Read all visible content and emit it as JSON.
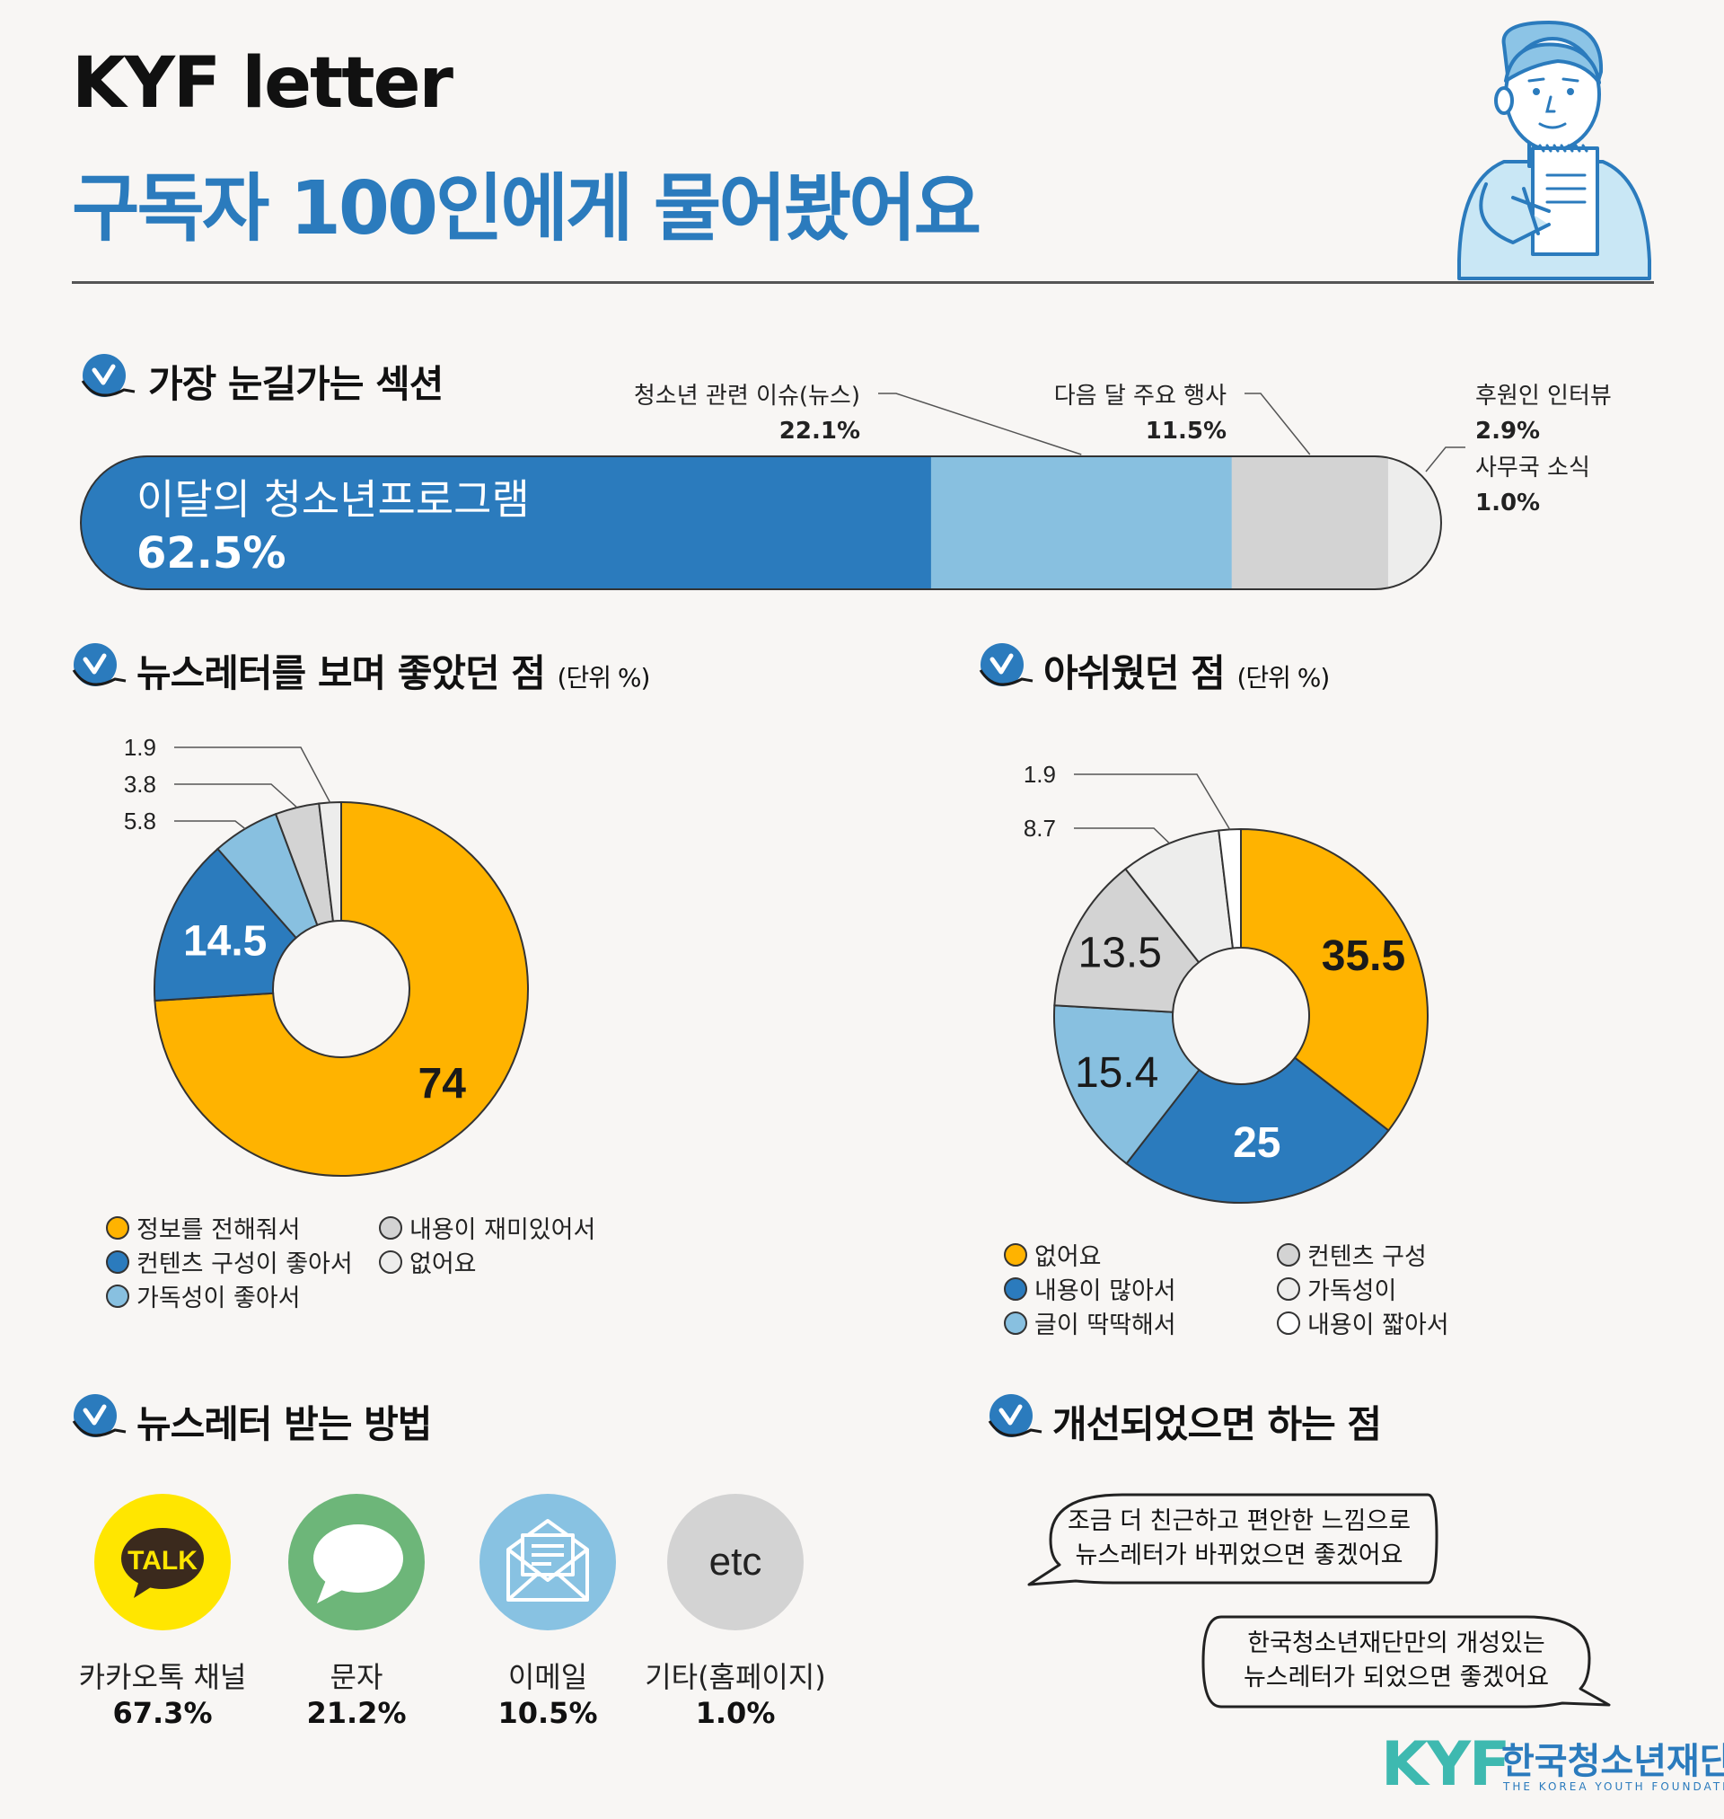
{
  "header": {
    "title_en": "KYF letter",
    "title_ko": "구독자 100인에게 물어봤어요"
  },
  "section1": {
    "title": "가장 눈길가는 섹션",
    "main_label": "이달의 청소년프로그램",
    "main_value": "62.5%",
    "callouts": [
      {
        "label": "청소년 관련 이슈(뉴스)",
        "value": "22.1%"
      },
      {
        "label": "다음 달 주요 행사",
        "value": "11.5%"
      },
      {
        "label": "후원인 인터뷰",
        "value": "2.9%"
      },
      {
        "label": "사무국 소식",
        "value": "1.0%"
      }
    ]
  },
  "section2": {
    "title": "뉴스레터를 보며 좋았던 점",
    "unit": "(단위 %)"
  },
  "section3": {
    "title": "아쉬웠던 점",
    "unit": "(단위 %)"
  },
  "section4": {
    "title": "뉴스레터 받는 방법",
    "methods": [
      {
        "label": "카카오톡 채널",
        "value": "67.3%",
        "icon": "kakaotalk-icon",
        "icon_text": "TALK",
        "color": "#ffe600"
      },
      {
        "label": "문자",
        "value": "21.2%",
        "icon": "speech-bubble-icon",
        "color": "#6db679"
      },
      {
        "label": "이메일",
        "value": "10.5%",
        "icon": "envelope-icon",
        "color": "#88c2e2"
      },
      {
        "label": "기타(홈페이지)",
        "value": "1.0%",
        "icon": "etc-icon",
        "icon_text": "etc",
        "color": "#d3d3d3"
      }
    ]
  },
  "section5": {
    "title": "개선되었으면 하는 점",
    "quote1_line1": "조금 더 친근하고 편안한 느낌으로",
    "quote1_line2": "뉴스레터가 바뀌었으면 좋겠어요",
    "quote2_line1": "한국청소년재단만의 개성있는",
    "quote2_line2": "뉴스레터가 되었으면 좋겠어요"
  },
  "footer": {
    "logo_text": "KYF",
    "org_name": "한국청소년재단",
    "org_name_en": "THE KOREA YOUTH FOUNDATION"
  },
  "colors": {
    "blue": "#2b7bbd",
    "light_blue": "#88c0e0",
    "gray": "#d3d3d3",
    "light_gray": "#ededec",
    "yellow": "#ffb300"
  },
  "chart_data": [
    {
      "type": "bar",
      "orientation": "horizontal-stacked",
      "title": "가장 눈길가는 섹션",
      "categories": [
        "이달의 청소년프로그램",
        "청소년 관련 이슈(뉴스)",
        "다음 달 주요 행사",
        "후원인 인터뷰",
        "사무국 소식"
      ],
      "values": [
        62.5,
        22.1,
        11.5,
        2.9,
        1.0
      ],
      "colors": [
        "#2b7bbd",
        "#88c0e0",
        "#d3d3d3",
        "#ededec",
        "#ededec"
      ]
    },
    {
      "type": "pie",
      "variant": "donut",
      "title": "뉴스레터를 보며 좋았던 점",
      "unit": "%",
      "categories": [
        "정보를 전해줘서",
        "컨텐츠 구성이 좋아서",
        "가독성이 좋아서",
        "내용이 재미있어서",
        "없어요"
      ],
      "values": [
        74,
        14.5,
        5.8,
        3.8,
        1.9
      ],
      "value_labels": [
        "74",
        "14.5",
        "5.8",
        "3.8",
        "1.9"
      ],
      "colors": [
        "#ffb300",
        "#2b7bbd",
        "#88c0e0",
        "#d3d3d3",
        "#ededec"
      ],
      "legend": "bottom"
    },
    {
      "type": "pie",
      "variant": "donut",
      "title": "아쉬웠던 점",
      "unit": "%",
      "categories": [
        "없어요",
        "내용이 많아서",
        "글이 딱딱해서",
        "컨텐츠 구성",
        "가독성이",
        "내용이 짧아서"
      ],
      "values": [
        35.5,
        25,
        15.4,
        13.5,
        8.7,
        1.9
      ],
      "value_labels": [
        "35.5",
        "25",
        "15.4",
        "13.5",
        "8.7",
        "1.9"
      ],
      "colors": [
        "#ffb300",
        "#2b7bbd",
        "#88c0e0",
        "#d3d3d3",
        "#ededec",
        "#ffffff"
      ],
      "legend": "bottom"
    }
  ]
}
